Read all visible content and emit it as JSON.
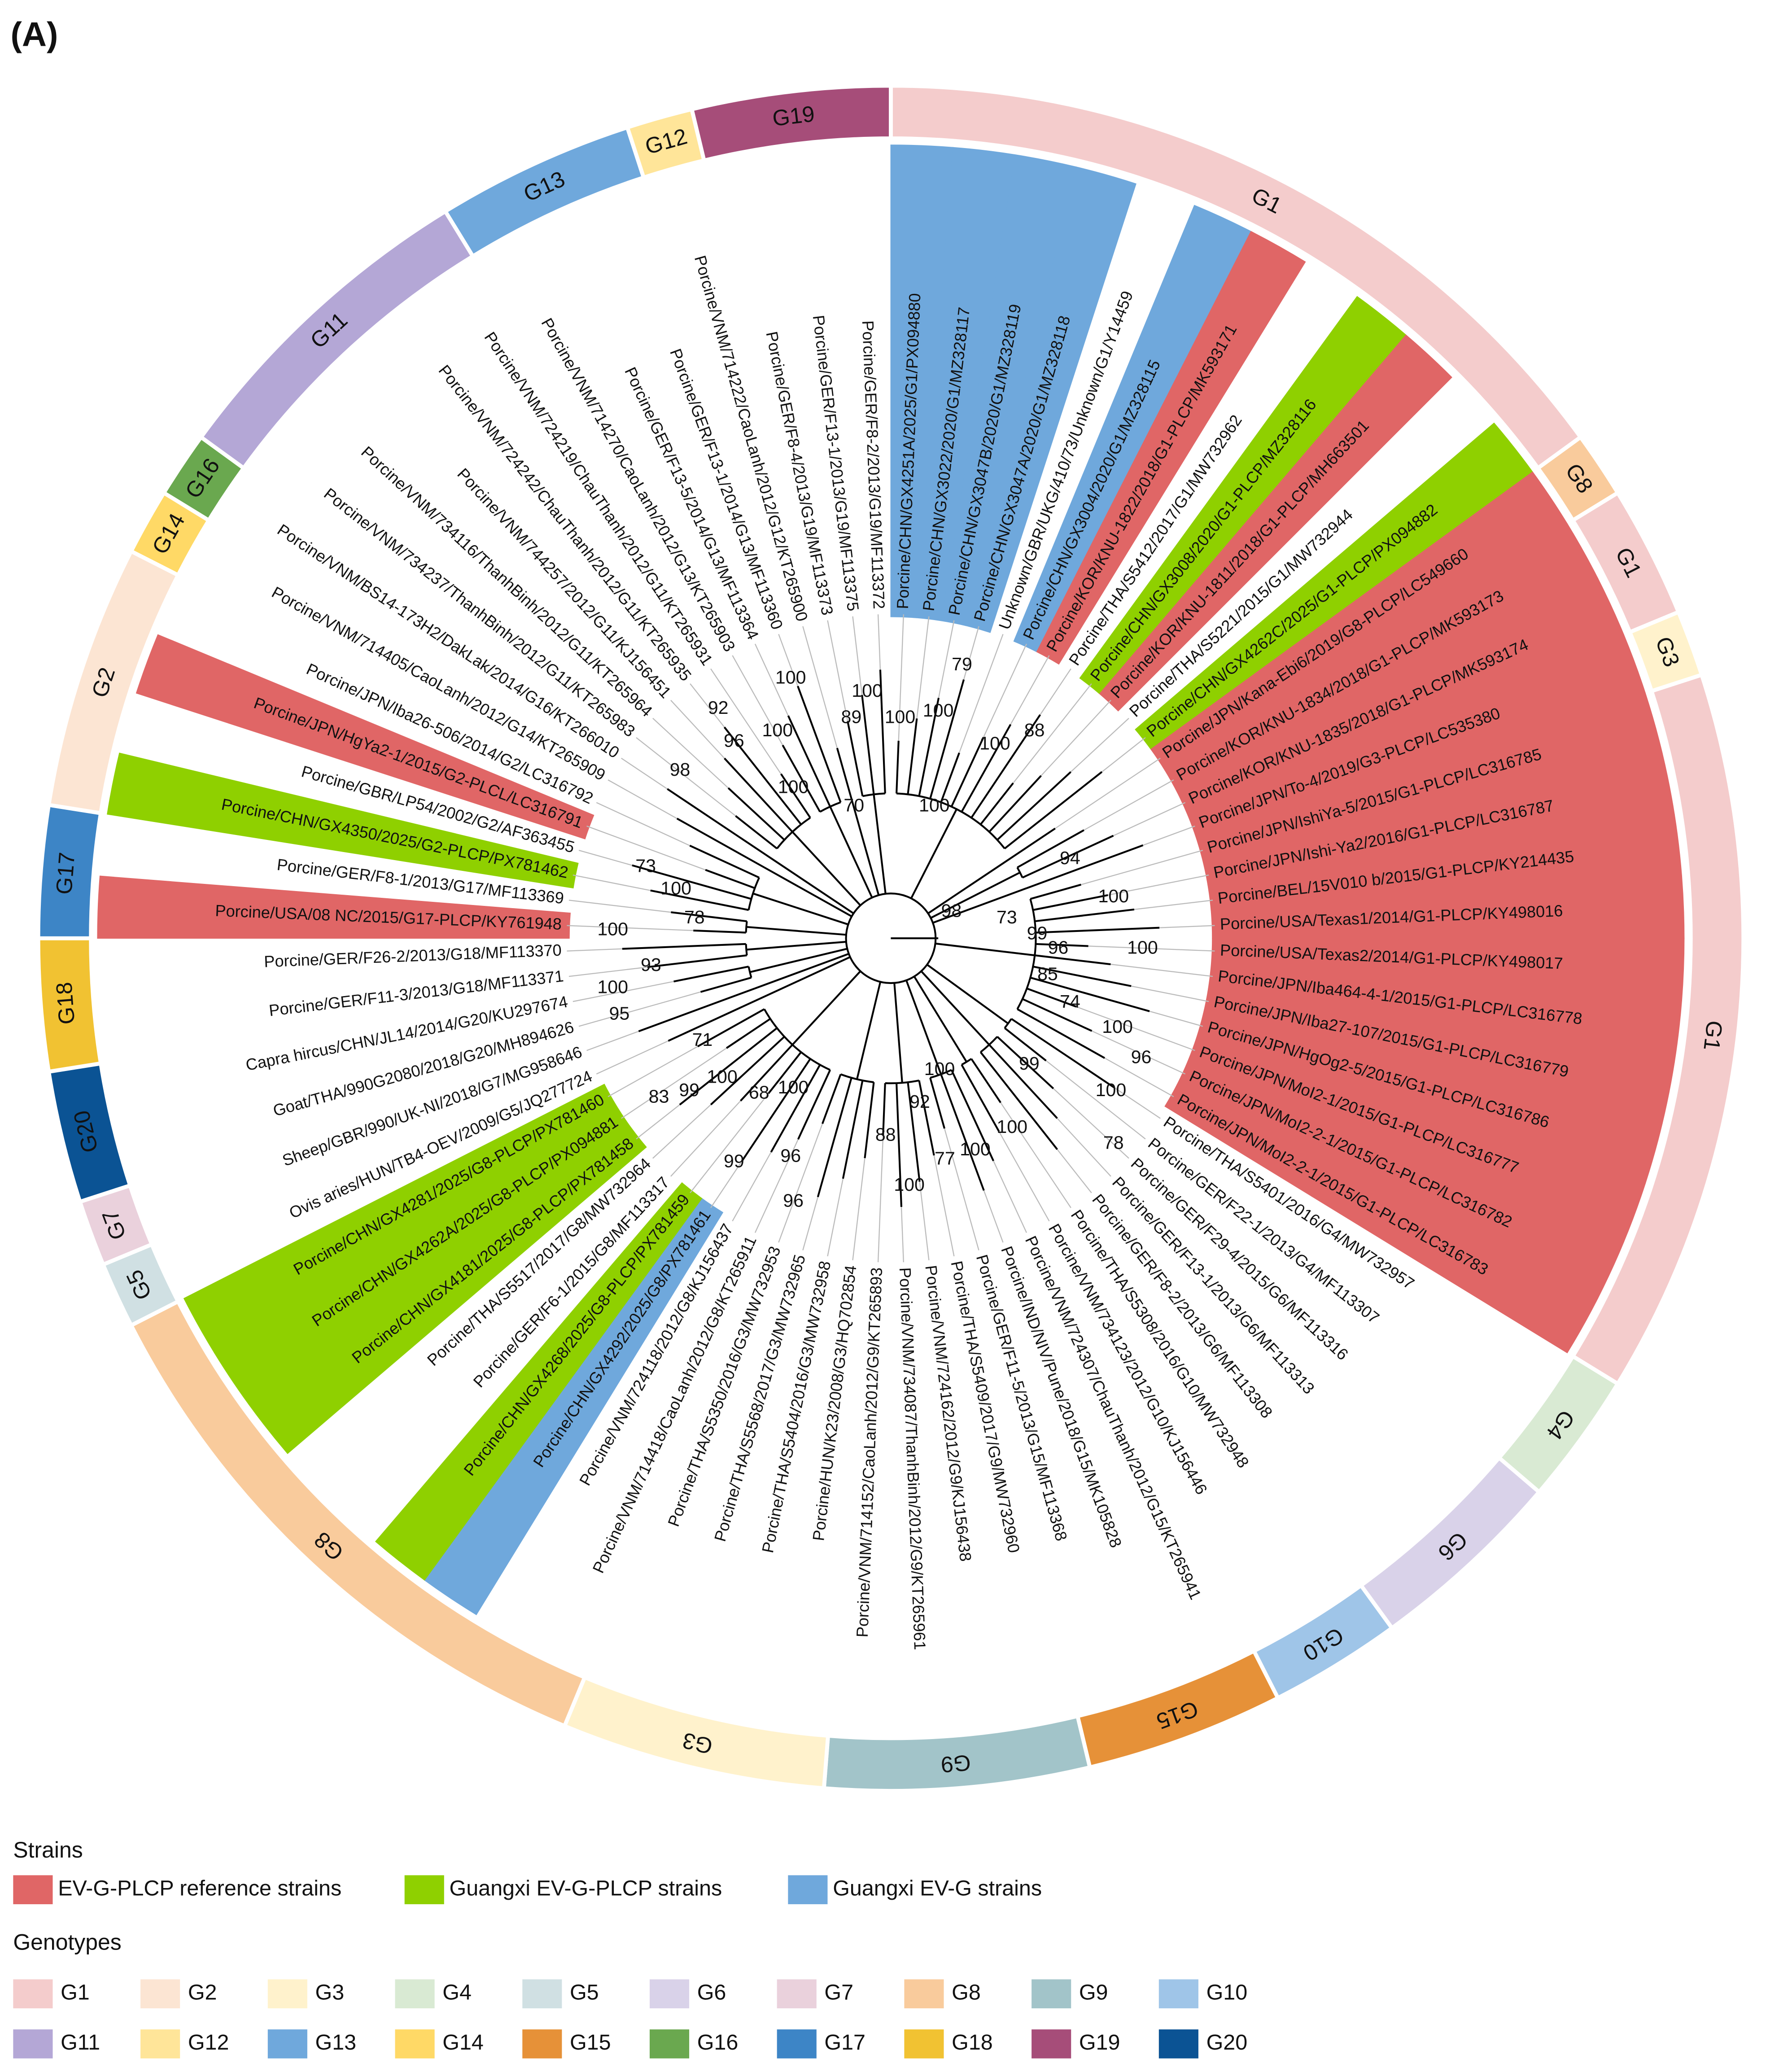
{
  "title": "(A)",
  "tree": {
    "leaves": [
      {
        "label": "Porcine/CHN/GX4251A/2025/G1/PX094880",
        "color": "#6fa8dc"
      },
      {
        "label": "Porcine/CHN/GX3022/2020/G1/MZ328117",
        "color": "#6fa8dc"
      },
      {
        "label": "Porcine/CHN/GX3047B/2020/G1/MZ328119",
        "color": "#6fa8dc"
      },
      {
        "label": "Porcine/CHN/GX3047A/2020/G1/MZ328118",
        "color": "#6fa8dc"
      },
      {
        "label": "Unknown/GBR/UKG/410/73/Unknown/G1/Y14459"
      },
      {
        "label": "Porcine/CHN/GX3004/2020/G1/MZ328115",
        "color": "#6fa8dc"
      },
      {
        "label": "Porcine/KOR/KNU-1822/2018/G1-PLCP/MK593171",
        "color": "#e06666"
      },
      {
        "label": "Porcine/THA/S5412/2017/G1/MW732962"
      },
      {
        "label": "Porcine/CHN/GX3008/2020/G1-PLCP/MZ328116",
        "color": "#8fd000"
      },
      {
        "label": "Porcine/KOR/KNU-1811/2018/G1-PLCP/MH663501",
        "color": "#e06666"
      },
      {
        "label": "Porcine/THA/S5221/2015/G1/MW732944"
      },
      {
        "label": "Porcine/CHN/GX4262C/2025/G1-PLCP/PX094882",
        "color": "#8fd000"
      },
      {
        "label": "Porcine/JPN/Kana-Ebi6/2019/G8-PLCP/LC549660",
        "color": "#e06666"
      },
      {
        "label": "Porcine/KOR/KNU-1834/2018/G1-PLCP/MK593173",
        "color": "#e06666"
      },
      {
        "label": "Porcine/KOR/KNU-1835/2018/G1-PLCP/MK593174",
        "color": "#e06666"
      },
      {
        "label": "Porcine/JPN/To-4/2019/G3-PLCP/LC535380",
        "color": "#e06666"
      },
      {
        "label": "Porcine/JPN/IshiYa-5/2015/G1-PLCP/LC316785",
        "color": "#e06666"
      },
      {
        "label": "Porcine/JPN/Ishi-Ya2/2016/G1-PLCP/LC316787",
        "color": "#e06666"
      },
      {
        "label": "Porcine/BEL/15V010 b/2015/G1-PLCP/KY214435",
        "color": "#e06666"
      },
      {
        "label": "Porcine/USA/Texas1/2014/G1-PLCP/KY498016",
        "color": "#e06666"
      },
      {
        "label": "Porcine/USA/Texas2/2014/G1-PLCP/KY498017",
        "color": "#e06666"
      },
      {
        "label": "Porcine/JPN/Iba464-4-1/2015/G1-PLCP/LC316778",
        "color": "#e06666"
      },
      {
        "label": "Porcine/JPN/Iba27-107/2015/G1-PLCP/LC316779",
        "color": "#e06666"
      },
      {
        "label": "Porcine/JPN/HgOg2-5/2015/G1-PLCP/LC316786",
        "color": "#e06666"
      },
      {
        "label": "Porcine/JPN/MoI2-1/2015/G1-PLCP/LC316777",
        "color": "#e06666"
      },
      {
        "label": "Porcine/JPN/MoI2-2-1/2015/G1-PLCP/LC316782",
        "color": "#e06666"
      },
      {
        "label": "Porcine/JPN/MoI2-2-1/2015/G1-PLCP/LC316783",
        "color": "#e06666"
      },
      {
        "label": "Porcine/THA/S5401/2016/G4/MW732957"
      },
      {
        "label": "Porcine/GER/F22-1/2013/G4/MF113307"
      },
      {
        "label": "Porcine/GER/F29-4/2015/G6/MF113316"
      },
      {
        "label": "Porcine/GER/F13-1/2013/G6/MF113313"
      },
      {
        "label": "Porcine/GER/F8-2/2013/G6/MF113308"
      },
      {
        "label": "Porcine/THA/S5308/2016/G10/MW732948"
      },
      {
        "label": "Porcine/VNM/734123/2012/G10/KJ156446"
      },
      {
        "label": "Porcine/VNM/724307/ChauThanh/2012/G15/KT265941"
      },
      {
        "label": "Porcine/IND/NIV/Pune/2018/G15/MK105828"
      },
      {
        "label": "Porcine/GER/F11-5/2013/G15/MF113368"
      },
      {
        "label": "Porcine/THA/S5409/2017/G9/MW732960"
      },
      {
        "label": "Porcine/VNM/724162/2012/G9/KJ156438"
      },
      {
        "label": "Porcine/VNM/734087/ThanhBinh/2012/G9/KT265961"
      },
      {
        "label": "Porcine/VNM/714152/CaoLanh/2012/G9/KT265893"
      },
      {
        "label": "Porcine/HUN/K23/2008/G3/HQ702854"
      },
      {
        "label": "Porcine/THA/S5404/2016/G3/MW732958"
      },
      {
        "label": "Porcine/THA/S5568/2017/G3/MW732965"
      },
      {
        "label": "Porcine/THA/S5350/2016/G3/MW732953"
      },
      {
        "label": "Porcine/VNM/714418/CaoLanh/2012/G8/KT265911"
      },
      {
        "label": "Porcine/VNM/724118/2012/G8/KJ156437"
      },
      {
        "label": "Porcine/CHN/GX4292/2025/G8/PX781461",
        "color": "#6fa8dc"
      },
      {
        "label": "Porcine/CHN/GX4268/2025/G8-PLCP/PX781459",
        "color": "#8fd000"
      },
      {
        "label": "Porcine/GER/F6-1/2015/G8/MF113317"
      },
      {
        "label": "Porcine/THA/S5517/2017/G8/MW732964"
      },
      {
        "label": "Porcine/CHN/GX4181/2025/G8-PLCP/PX781458",
        "color": "#8fd000"
      },
      {
        "label": "Porcine/CHN/GX4262A/2025/G8-PLCP/PX094881",
        "color": "#8fd000"
      },
      {
        "label": "Porcine/CHN/GX4281/2025/G8-PLCP/PX781460",
        "color": "#8fd000"
      },
      {
        "label": "Ovis aries/HUN/TB4-OEV/2009/G5/JQ277724"
      },
      {
        "label": "Sheep/GBR/990/UK-NI/2018/G7/MG958646"
      },
      {
        "label": "Goat/THA/990G2080/2018/G20/MH894626"
      },
      {
        "label": "Capra hircus/CHN/JL14/2014/G20/KU297674"
      },
      {
        "label": "Porcine/GER/F11-3/2013/G18/MF113371"
      },
      {
        "label": "Porcine/GER/F26-2/2013/G18/MF113370"
      },
      {
        "label": "Porcine/USA/08 NC/2015/G17-PLCP/KY761948",
        "color": "#e06666"
      },
      {
        "label": "Porcine/GER/F8-1/2013/G17/MF113369"
      },
      {
        "label": "Porcine/CHN/GX4350/2025/G2-PLCP/PX781462",
        "color": "#8fd000"
      },
      {
        "label": "Porcine/GBR/LP54/2002/G2/AF363455"
      },
      {
        "label": "Porcine/JPN/HgYa2-1/2015/G2-PLCL/LC316791",
        "color": "#e06666"
      },
      {
        "label": "Porcine/JPN/Iba26-506/2014/G2/LC316792"
      },
      {
        "label": "Porcine/VNM/714405/CaoLanh/2012/G14/KT265909"
      },
      {
        "label": "Porcine/VNM/BS14-173H2/DakLak/2014/G16/KT266010"
      },
      {
        "label": "Porcine/VNM/734237/ThanhBinh/2012/G11/KT265983"
      },
      {
        "label": "Porcine/VNM/734116/ThanhBinh/2012/G11/KT265964"
      },
      {
        "label": "Porcine/VNM/744257/2012/G11/KJ156451"
      },
      {
        "label": "Porcine/VNM/724242/ChauThanh/2012/G11/KT265935"
      },
      {
        "label": "Porcine/VNM/724219/ChauThanh/2012/G11/KT265931"
      },
      {
        "label": "Porcine/VNM/714270/CaoLanh/2012/G13/KT265903"
      },
      {
        "label": "Porcine/GER/F13-5/2014/G13/MF113364"
      },
      {
        "label": "Porcine/GER/F13-1/2014/G13/MF113360"
      },
      {
        "label": "Porcine/VNM/714222/CaoLanh/2012/G12/KT265900"
      },
      {
        "label": "Porcine/GER/F8-4/2013/G19/MF113373"
      },
      {
        "label": "Porcine/GER/F13-1/2013/G19/MF113375"
      },
      {
        "label": "Porcine/GER/F8-2/2013/G19/MF113372"
      }
    ],
    "bootstrap": [
      100,
      100,
      79,
      100,
      88,
      100,
      70,
      89,
      100,
      100,
      100,
      92,
      96,
      100,
      98,
      73,
      100,
      78,
      100,
      93,
      100,
      95,
      71,
      100,
      99,
      83,
      68,
      100,
      96,
      99,
      96,
      88,
      92,
      100,
      77,
      100,
      100,
      100,
      99,
      100,
      78,
      98,
      73,
      99,
      94,
      100,
      96,
      100,
      85,
      74,
      100,
      96
    ]
  },
  "genotype_ring": [
    "G1",
    "G8",
    "G1",
    "G3",
    "G1",
    "G4",
    "G6",
    "G10",
    "G15",
    "G9",
    "G3",
    "G8",
    "G5",
    "G7",
    "G20",
    "G18",
    "G17",
    "G2",
    "G14",
    "G16",
    "G11",
    "G13",
    "G12",
    "G19"
  ],
  "legend": {
    "strains_title": "Strains",
    "strains": [
      {
        "label": "EV-G-PLCP reference strains",
        "color": "#e06666"
      },
      {
        "label": "Guangxi EV-G-PLCP strains",
        "color": "#8fd000"
      },
      {
        "label": "Guangxi EV-G strains",
        "color": "#6fa8dc"
      }
    ],
    "genotypes_title": "Genotypes",
    "genotypes": [
      {
        "label": "G1",
        "color": "#f4cccc"
      },
      {
        "label": "G2",
        "color": "#fce5d3"
      },
      {
        "label": "G3",
        "color": "#fff2cc"
      },
      {
        "label": "G4",
        "color": "#d9ead3"
      },
      {
        "label": "G5",
        "color": "#d0e0e3"
      },
      {
        "label": "G6",
        "color": "#d9d2e9"
      },
      {
        "label": "G7",
        "color": "#ead1dc"
      },
      {
        "label": "G8",
        "color": "#f9cb9c"
      },
      {
        "label": "G9",
        "color": "#a2c4c9"
      },
      {
        "label": "G10",
        "color": "#9fc5e8"
      },
      {
        "label": "G11",
        "color": "#b4a7d6"
      },
      {
        "label": "G12",
        "color": "#ffe599"
      },
      {
        "label": "G13",
        "color": "#6fa8dc"
      },
      {
        "label": "G14",
        "color": "#ffd966"
      },
      {
        "label": "G15",
        "color": "#e69138"
      },
      {
        "label": "G16",
        "color": "#6aa84f"
      },
      {
        "label": "G17",
        "color": "#3d85c6"
      },
      {
        "label": "G18",
        "color": "#f1c232"
      },
      {
        "label": "G19",
        "color": "#a64d79"
      },
      {
        "label": "G20",
        "color": "#0b5394"
      }
    ]
  }
}
